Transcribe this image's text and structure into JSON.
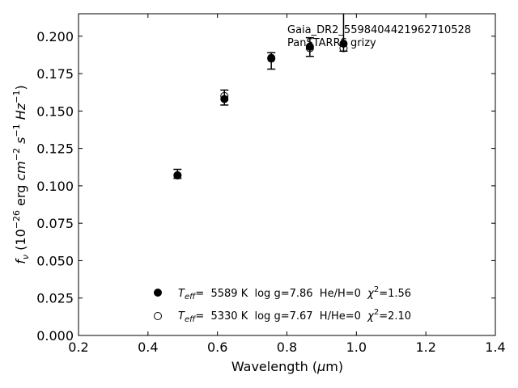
{
  "chart_data": {
    "type": "scatter",
    "xlabel": "Wavelength (μm)",
    "ylabel": "f_ν (10^-26 erg cm^-2 s^-1 Hz^-1)",
    "xlim": [
      0.2,
      1.4
    ],
    "ylim": [
      0.0,
      0.215
    ],
    "xticks": [
      0.2,
      0.4,
      0.6,
      0.8,
      1.0,
      1.2,
      1.4
    ],
    "xtick_labels": [
      "0.2",
      "0.4",
      "0.6",
      "0.8",
      "1.0",
      "1.2",
      "1.4"
    ],
    "yticks": [
      0.0,
      0.025,
      0.05,
      0.075,
      0.1,
      0.125,
      0.15,
      0.175,
      0.2
    ],
    "ytick_labels": [
      "0.000",
      "0.025",
      "0.050",
      "0.075",
      "0.100",
      "0.125",
      "0.150",
      "0.175",
      "0.200"
    ],
    "grid": false,
    "annotations": [
      "Gaia_DR2_5598404421962710528",
      "PanSTARRS grizy"
    ],
    "observed": [
      {
        "x": 0.485,
        "y": 0.108,
        "err_lo": 0.105,
        "err_hi": 0.111
      },
      {
        "x": 0.62,
        "y": 0.159,
        "err_lo": 0.154,
        "err_hi": 0.164
      },
      {
        "x": 0.755,
        "y": 0.1855,
        "err_lo": 0.178,
        "err_hi": 0.189
      },
      {
        "x": 0.866,
        "y": 0.193,
        "err_lo": 0.1865,
        "err_hi": 0.199
      },
      {
        "x": 0.963,
        "y": 0.195,
        "err_lo": 0.19,
        "err_hi": 0.215
      }
    ],
    "series": [
      {
        "marker": "filled-circle",
        "legend_label": {
          "teff": "T_eff=  5589 K  log g=7.86  He/H=0  χ^2=1.56"
        },
        "x": [
          0.485,
          0.62,
          0.755,
          0.866,
          0.963
        ],
        "y": [
          0.107,
          0.158,
          0.1855,
          0.193,
          0.195
        ]
      },
      {
        "marker": "open-circle",
        "legend_label": {
          "teff": "T_eff=  5330 K  log g=7.67  H/He=0  χ^2=2.10"
        },
        "x": [
          0.485,
          0.62,
          0.755,
          0.866,
          0.963
        ],
        "y": [
          0.107,
          0.16,
          0.185,
          0.192,
          0.192
        ]
      }
    ],
    "legend": {
      "placement": "lower-center",
      "rows": [
        {
          "teff_label": "T",
          "teff_sub": "eff",
          "teff_value": "=  5589 K  log g=7.86  He/H=0  ",
          "chi_label": "χ",
          "chi_sup": "2",
          "chi_value": "=1.56"
        },
        {
          "teff_label": "T",
          "teff_sub": "eff",
          "teff_value": "=  5330 K  log g=7.67  H/He=0  ",
          "chi_label": "χ",
          "chi_sup": "2",
          "chi_value": "=2.10"
        }
      ]
    },
    "axis_text": {
      "x_main": "Wavelength (",
      "x_mu": "μ",
      "x_unit": "m)",
      "y_f": "f",
      "y_nu": "ν",
      "y_open": " (10",
      "y_exp1": "−26",
      "y_erg": " erg ",
      "y_cm": "cm",
      "y_exp2": "−2",
      "y_s": " s",
      "y_exp3": "−1",
      "y_hz": " Hz",
      "y_exp4": "−1",
      "y_close": ")"
    }
  }
}
